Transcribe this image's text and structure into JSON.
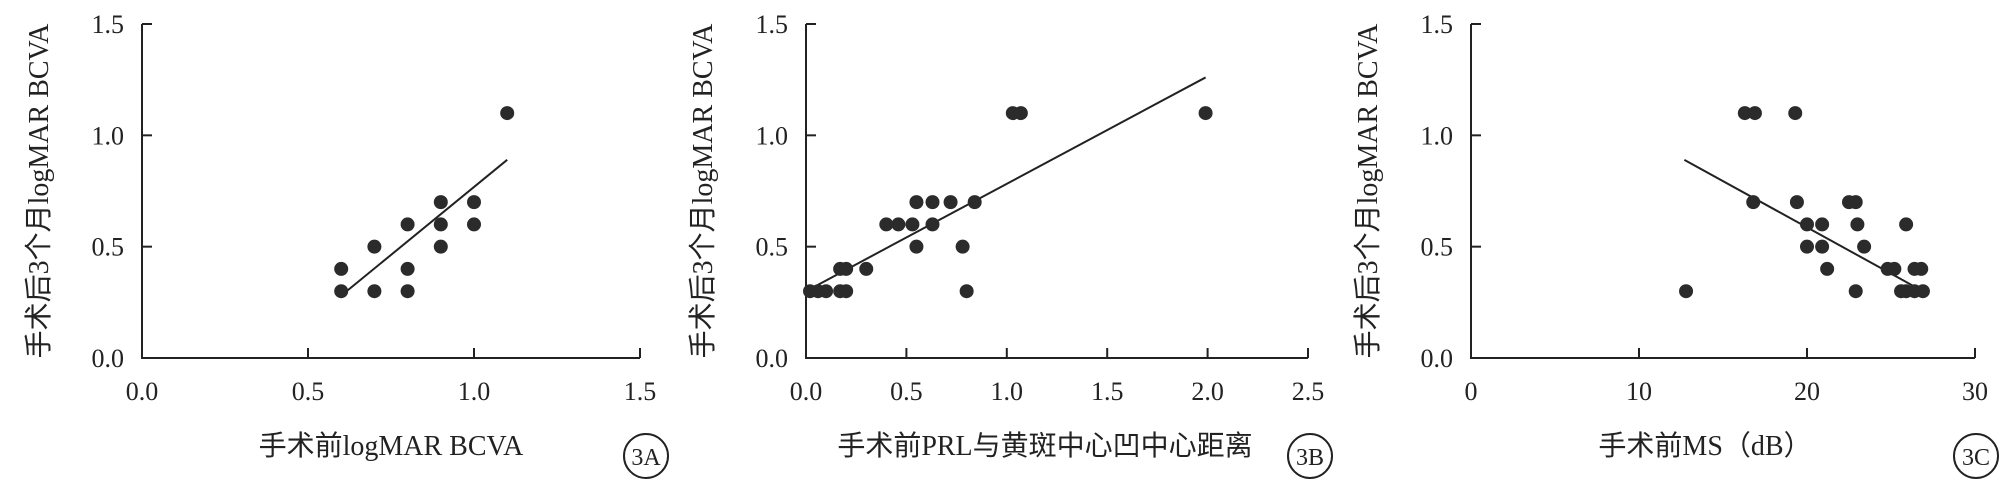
{
  "chart_data": [
    {
      "type": "scatter",
      "panel_label": "3A",
      "xlabel": "手术前logMAR BCVA",
      "ylabel": "手术后3个月logMAR BCVA",
      "xlim": [
        0,
        1.5
      ],
      "ylim": [
        0,
        1.5
      ],
      "xticks": [
        "0.0",
        "0.5",
        "1.0",
        "1.5"
      ],
      "yticks": [
        "0.0",
        "0.5",
        "1.0",
        "1.5"
      ],
      "points": [
        [
          0.6,
          0.4
        ],
        [
          0.6,
          0.3
        ],
        [
          0.7,
          0.5
        ],
        [
          0.7,
          0.3
        ],
        [
          0.8,
          0.6
        ],
        [
          0.8,
          0.4
        ],
        [
          0.8,
          0.3
        ],
        [
          0.9,
          0.7
        ],
        [
          0.9,
          0.6
        ],
        [
          0.9,
          0.5
        ],
        [
          1.0,
          0.7
        ],
        [
          1.0,
          0.6
        ],
        [
          1.1,
          1.1
        ]
      ],
      "fit_line": [
        [
          0.6,
          0.28
        ],
        [
          1.1,
          0.89
        ]
      ]
    },
    {
      "type": "scatter",
      "panel_label": "3B",
      "xlabel": "手术前PRL与黄斑中心凹中心距离",
      "ylabel": "手术后3个月logMAR BCVA",
      "xlim": [
        0,
        2.5
      ],
      "ylim": [
        0,
        1.5
      ],
      "xticks": [
        "0.0",
        "0.5",
        "1.0",
        "1.5",
        "2.0",
        "2.5"
      ],
      "yticks": [
        "0.0",
        "0.5",
        "1.0",
        "1.5"
      ],
      "points": [
        [
          0.02,
          0.3
        ],
        [
          0.06,
          0.3
        ],
        [
          0.1,
          0.3
        ],
        [
          0.17,
          0.4
        ],
        [
          0.17,
          0.3
        ],
        [
          0.2,
          0.4
        ],
        [
          0.2,
          0.3
        ],
        [
          0.3,
          0.4
        ],
        [
          0.4,
          0.6
        ],
        [
          0.46,
          0.6
        ],
        [
          0.53,
          0.6
        ],
        [
          0.55,
          0.7
        ],
        [
          0.55,
          0.5
        ],
        [
          0.63,
          0.7
        ],
        [
          0.63,
          0.6
        ],
        [
          0.72,
          0.7
        ],
        [
          0.78,
          0.5
        ],
        [
          0.8,
          0.3
        ],
        [
          0.84,
          0.7
        ],
        [
          1.03,
          1.1
        ],
        [
          1.07,
          1.1
        ],
        [
          1.99,
          1.1
        ]
      ],
      "fit_line": [
        [
          0.0,
          0.3
        ],
        [
          1.99,
          1.26
        ]
      ]
    },
    {
      "type": "scatter",
      "panel_label": "3C",
      "xlabel": "手术前MS（dB）",
      "ylabel": "手术后3个月logMAR BCVA",
      "xlim": [
        0,
        30
      ],
      "ylim": [
        0,
        1.5
      ],
      "xticks": [
        "0",
        "10",
        "20",
        "30"
      ],
      "yticks": [
        "0.0",
        "0.5",
        "1.0",
        "1.5"
      ],
      "points": [
        [
          12.8,
          0.3
        ],
        [
          16.3,
          1.1
        ],
        [
          16.9,
          1.1
        ],
        [
          16.8,
          0.7
        ],
        [
          19.3,
          1.1
        ],
        [
          19.4,
          0.7
        ],
        [
          20.0,
          0.6
        ],
        [
          20.0,
          0.5
        ],
        [
          20.9,
          0.6
        ],
        [
          20.9,
          0.5
        ],
        [
          21.2,
          0.4
        ],
        [
          22.5,
          0.7
        ],
        [
          22.9,
          0.7
        ],
        [
          23.0,
          0.6
        ],
        [
          22.9,
          0.3
        ],
        [
          23.4,
          0.5
        ],
        [
          24.8,
          0.4
        ],
        [
          25.2,
          0.4
        ],
        [
          25.6,
          0.3
        ],
        [
          25.9,
          0.6
        ],
        [
          25.9,
          0.3
        ],
        [
          26.4,
          0.4
        ],
        [
          26.4,
          0.3
        ],
        [
          26.8,
          0.4
        ],
        [
          26.9,
          0.3
        ]
      ],
      "fit_line": [
        [
          12.7,
          0.89
        ],
        [
          26.9,
          0.3
        ]
      ]
    }
  ]
}
